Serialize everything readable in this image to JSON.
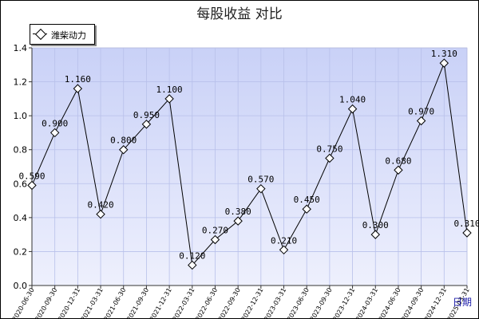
{
  "chart_data": {
    "type": "line",
    "title": "每股收益  对比",
    "xlabel": "日期",
    "ylabel": "",
    "ylim": [
      0,
      1.4
    ],
    "yticks": [
      "0.0",
      "0.2",
      "0.4",
      "0.6",
      "0.8",
      "1.0",
      "1.2",
      "1.4"
    ],
    "grid": true,
    "legend_position": "top-left",
    "categories": [
      "2020-06-30",
      "2020-09-30",
      "2020-12-31",
      "2021-03-31",
      "2021-06-30",
      "2021-09-30",
      "2021-12-31",
      "2022-03-31",
      "2022-06-30",
      "2022-09-30",
      "2022-12-31",
      "2023-03-31",
      "2023-06-30",
      "2023-09-30",
      "2023-12-31",
      "2024-03-31",
      "2024-06-30",
      "2024-09-30",
      "2024-12-31",
      "2025-03-31"
    ],
    "series": [
      {
        "name": "潍柴动力",
        "values": [
          0.59,
          0.9,
          1.16,
          0.42,
          0.8,
          0.95,
          1.1,
          0.12,
          0.27,
          0.38,
          0.57,
          0.21,
          0.45,
          0.75,
          1.04,
          0.3,
          0.68,
          0.97,
          1.31,
          0.31
        ],
        "labels": [
          "0.590",
          "0.900",
          "1.160",
          "0.420",
          "0.800",
          "0.950",
          "1.100",
          "0.120",
          "0.270",
          "0.380",
          "0.570",
          "0.210",
          "0.450",
          "0.750",
          "1.040",
          "0.300",
          "0.680",
          "0.970",
          "1.310",
          "0.310"
        ],
        "color": "#000000"
      }
    ],
    "colors": {
      "plot_bg_top": "#c9d1f7",
      "plot_bg_bottom": "#eef0fd",
      "grid": "#b8c0ea",
      "xlabel": "#1a1aa8"
    }
  }
}
